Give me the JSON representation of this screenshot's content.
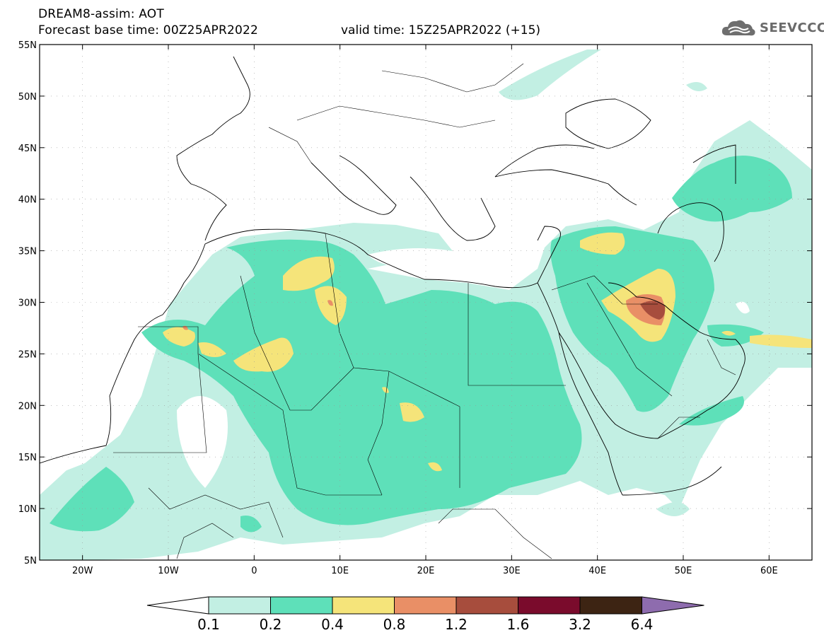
{
  "header": {
    "title": "DREAM8-assim: AOT",
    "base_time": "Forecast base time: 00Z25APR2022",
    "valid_time": "valid time: 15Z25APR2022 (+15)",
    "logo_text": "SEEVCCC",
    "logo_icon": "cloud-logo-icon"
  },
  "map": {
    "lat_labels": [
      "55N",
      "50N",
      "45N",
      "40N",
      "35N",
      "30N",
      "25N",
      "20N",
      "15N",
      "10N",
      "5N"
    ],
    "lon_labels": [
      "20W",
      "10W",
      "0",
      "10E",
      "20E",
      "30E",
      "40E",
      "50E",
      "60E"
    ],
    "lon_range": [
      -25,
      65
    ],
    "lat_range": [
      5,
      55
    ],
    "variable": "Aerosol Optical Thickness"
  },
  "colorbar": {
    "labels": [
      "0.1",
      "0.2",
      "0.4",
      "0.8",
      "1.2",
      "1.6",
      "3.2",
      "6.4"
    ],
    "colors": [
      "#ffffff",
      "#c2efe3",
      "#5ee0b9",
      "#f5e47a",
      "#e98f66",
      "#a74d3d",
      "#7a0b2c",
      "#3d2413",
      "#8e6cae"
    ]
  }
}
